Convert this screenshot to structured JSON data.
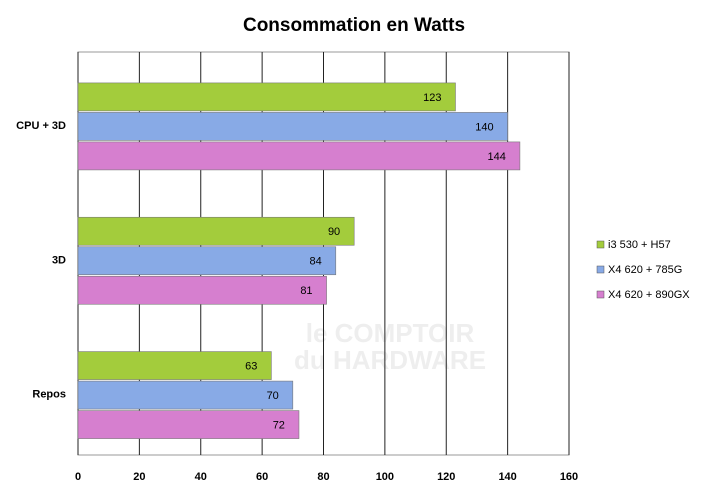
{
  "chart_data": {
    "type": "bar",
    "orientation": "horizontal",
    "title": "Consommation en Watts",
    "watermark": [
      "le COMPTOIR",
      "du HARDWARE"
    ],
    "categories": [
      "CPU + 3D",
      "3D",
      "Repos"
    ],
    "series": [
      {
        "name": "i3 530 + H57",
        "color": "#a3cc3c",
        "values": [
          123,
          90,
          63
        ]
      },
      {
        "name": "X4 620 + 785G",
        "color": "#88aae6",
        "values": [
          140,
          84,
          70
        ]
      },
      {
        "name": "X4 620 + 890GX",
        "color": "#d67fcf",
        "values": [
          144,
          81,
          72
        ]
      }
    ],
    "xlim": [
      0,
      160
    ],
    "xticks": [
      0,
      20,
      40,
      60,
      80,
      100,
      120,
      140,
      160
    ],
    "grid": true,
    "legend": "right"
  }
}
